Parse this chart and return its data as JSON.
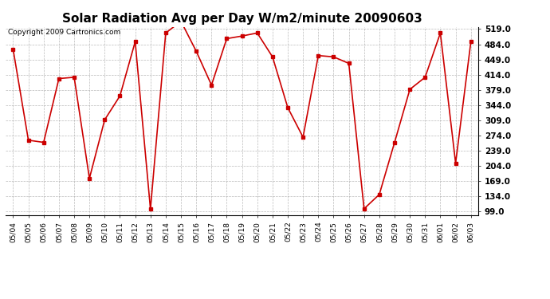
{
  "title": "Solar Radiation Avg per Day W/m2/minute 20090603",
  "copyright": "Copyright 2009 Cartronics.com",
  "dates": [
    "05/04",
    "05/05",
    "05/06",
    "05/07",
    "05/08",
    "05/09",
    "05/10",
    "05/11",
    "05/12",
    "05/13",
    "05/14",
    "05/15",
    "05/16",
    "05/17",
    "05/18",
    "05/19",
    "05/20",
    "05/21",
    "05/22",
    "05/23",
    "05/24",
    "05/25",
    "05/26",
    "05/27",
    "05/28",
    "05/29",
    "05/30",
    "05/31",
    "06/01",
    "06/02",
    "06/03"
  ],
  "values": [
    472,
    263,
    258,
    405,
    408,
    175,
    310,
    365,
    490,
    104,
    510,
    537,
    468,
    390,
    497,
    503,
    510,
    455,
    338,
    270,
    458,
    455,
    440,
    105,
    138,
    258,
    380,
    408,
    510,
    210,
    490
  ],
  "line_color": "#cc0000",
  "marker": "s",
  "marker_size": 2.5,
  "bg_color": "#ffffff",
  "grid_color": "#aaaaaa",
  "yticks": [
    99.0,
    134.0,
    169.0,
    204.0,
    239.0,
    274.0,
    309.0,
    344.0,
    379.0,
    414.0,
    449.0,
    484.0,
    519.0
  ],
  "ymin": 90.0,
  "ymax": 524.0,
  "title_fontsize": 11,
  "copyright_fontsize": 6.5,
  "xtick_fontsize": 6.5,
  "ytick_fontsize": 7.5
}
